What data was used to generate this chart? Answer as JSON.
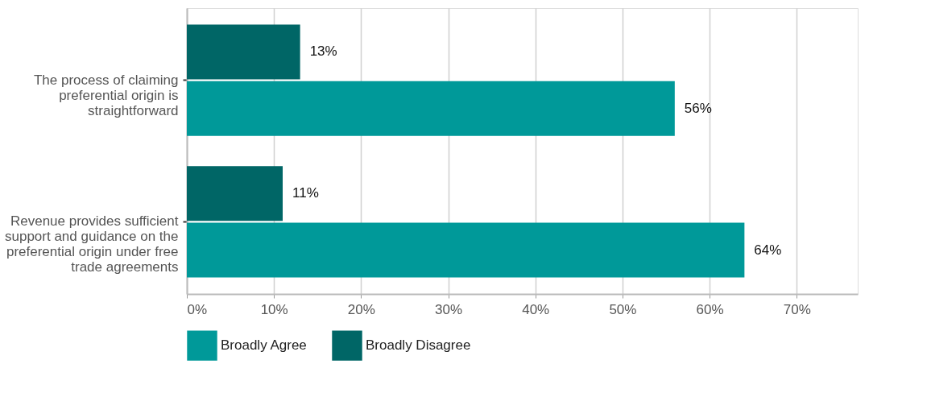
{
  "chart_data": {
    "type": "bar",
    "orientation": "horizontal",
    "categories": [
      "The process of claiming preferential origin is straightforward",
      "Revenue provides sufficient support and guidance on the preferential origin under free trade agreements"
    ],
    "series": [
      {
        "name": "Broadly Agree",
        "color": "#009999",
        "values": [
          56,
          64
        ],
        "value_labels": [
          "56%",
          "64%"
        ]
      },
      {
        "name": "Broadly Disagree",
        "color": "#006666",
        "values": [
          13,
          11
        ],
        "value_labels": [
          "13%",
          "11%"
        ]
      }
    ],
    "xlim": [
      0,
      77
    ],
    "xticks": [
      {
        "value": 0,
        "label": "0%"
      },
      {
        "value": 10,
        "label": "10%"
      },
      {
        "value": 20,
        "label": "20%"
      },
      {
        "value": 30,
        "label": "30%"
      },
      {
        "value": 40,
        "label": "40%"
      },
      {
        "value": 50,
        "label": "50%"
      },
      {
        "value": 60,
        "label": "60%"
      },
      {
        "value": 70,
        "label": "70%"
      }
    ],
    "grid": "x",
    "legend": "bottom"
  }
}
